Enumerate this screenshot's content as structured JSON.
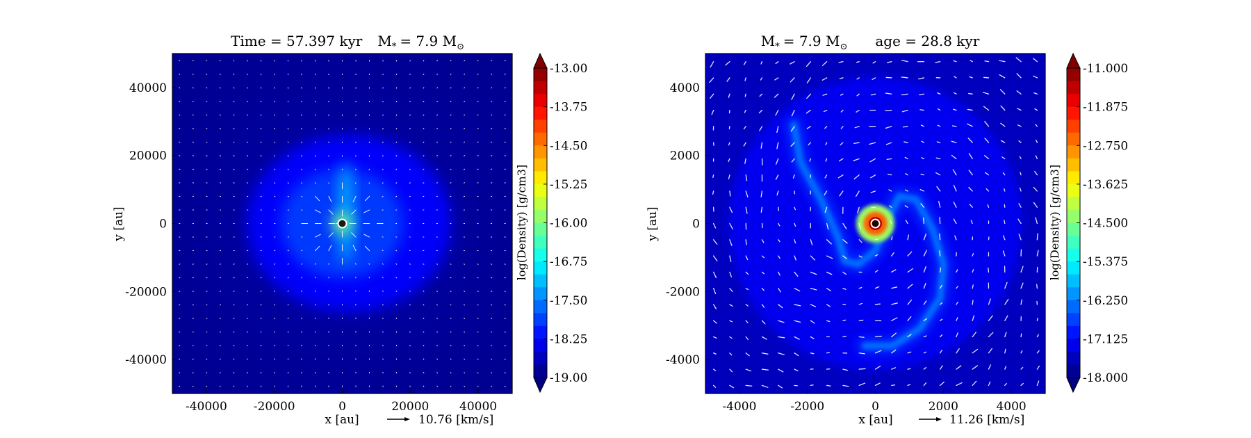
{
  "chart_data": [
    {
      "type": "heatmap",
      "title": "Time = 57.397 kyr    M$_*$ = 7.9 M$_\\odot$",
      "title_parts": {
        "time_label": "Time = 57.397 kyr",
        "mass_label": "M",
        "mass_sub": "*",
        "mass_value": "= 7.9 M",
        "mass_unit_sub": "⊙"
      },
      "xlabel": "x [au]",
      "ylabel": "y [au]",
      "xlim": [
        -50000,
        50000
      ],
      "ylim": [
        -50000,
        50000
      ],
      "xticks": [
        -40000,
        -20000,
        0,
        20000,
        40000
      ],
      "xtick_labels": [
        "-40000",
        "-20000",
        "0",
        "20000",
        "40000"
      ],
      "yticks": [
        40000,
        20000,
        0,
        -20000,
        -40000
      ],
      "ytick_labels": [
        "40000",
        "20000",
        "0",
        "-20000",
        "-40000"
      ],
      "velocity_key": {
        "value": "10.76 [km/s]"
      },
      "colorbar": {
        "label": "log(Density) [g/cm3]",
        "range": [
          -19.0,
          -13.0
        ],
        "ticks": [
          -13.0,
          -13.75,
          -14.5,
          -15.25,
          -16.0,
          -16.75,
          -17.5,
          -18.25,
          -19.0
        ],
        "tick_labels": [
          "-13.00",
          "-13.75",
          "-14.50",
          "-15.25",
          "-16.00",
          "-16.75",
          "-17.50",
          "-18.25",
          "-19.00"
        ],
        "colormap": "jet",
        "extend": "both"
      },
      "field": {
        "background_log_density": -18.9,
        "structures": [
          {
            "shape": "envelope",
            "center": [
              2000,
              0
            ],
            "radii": [
              30000,
              26000
            ],
            "log_density": -18.25
          },
          {
            "shape": "envelope",
            "center": [
              0,
              0
            ],
            "radii": [
              18000,
              16000
            ],
            "log_density": -17.9
          },
          {
            "shape": "filament",
            "center": [
              1000,
              3000
            ],
            "radii": [
              2200,
              15000
            ],
            "log_density": -17.2
          },
          {
            "shape": "core",
            "center": [
              0,
              0
            ],
            "radii": [
              3000,
              3000
            ],
            "log_density": -16.0
          }
        ],
        "sink": {
          "x": 0,
          "y": 0,
          "label": "star"
        }
      }
    },
    {
      "type": "heatmap",
      "title_parts": {
        "mass_label": "M",
        "mass_sub": "*",
        "mass_value": "= 7.9 M",
        "mass_unit_sub": "⊙",
        "age_label": "age = 28.8 kyr"
      },
      "xlabel": "x [au]",
      "ylabel": "y [au]",
      "xlim": [
        -5000,
        5000
      ],
      "ylim": [
        -5000,
        5000
      ],
      "xticks": [
        -4000,
        -2000,
        0,
        2000,
        4000
      ],
      "xtick_labels": [
        "-4000",
        "-2000",
        "0",
        "2000",
        "4000"
      ],
      "yticks": [
        4000,
        2000,
        0,
        -2000,
        -4000
      ],
      "ytick_labels": [
        "4000",
        "2000",
        "0",
        "-2000",
        "-4000"
      ],
      "velocity_key": {
        "value": "11.26 [km/s]"
      },
      "colorbar": {
        "label": "log(Density) [g/cm3]",
        "range": [
          -18.0,
          -11.0
        ],
        "ticks": [
          -11.0,
          -11.875,
          -12.75,
          -13.625,
          -14.5,
          -15.375,
          -16.25,
          -17.125,
          -18.0
        ],
        "tick_labels": [
          "-11.000",
          "-11.875",
          "-12.750",
          "-13.625",
          "-14.500",
          "-15.375",
          "-16.250",
          "-17.125",
          "-18.000"
        ],
        "colormap": "jet",
        "extend": "both"
      },
      "field": {
        "background_log_density": -17.6,
        "envelope": {
          "center": [
            0,
            0
          ],
          "radii": [
            4300,
            4300
          ],
          "log_density": -17.2
        },
        "spiral_arms": [
          {
            "log_density": -16.4,
            "points": [
              [
                -2400,
                2900
              ],
              [
                -2200,
                1800
              ],
              [
                -1600,
                700
              ],
              [
                -1100,
                -400
              ],
              [
                -900,
                -1100
              ],
              [
                -500,
                -1200
              ],
              [
                0,
                -800
              ],
              [
                300,
                0
              ],
              [
                700,
                800
              ],
              [
                1200,
                700
              ],
              [
                1700,
                -200
              ],
              [
                2000,
                -1200
              ],
              [
                1900,
                -2200
              ],
              [
                1300,
                -3100
              ],
              [
                500,
                -3600
              ],
              [
                -300,
                -3600
              ]
            ]
          }
        ],
        "core": {
          "center": [
            0,
            0
          ],
          "radius": 350,
          "log_density": -11.3
        },
        "sink": {
          "x": 0,
          "y": 0,
          "label": "star"
        }
      }
    }
  ]
}
